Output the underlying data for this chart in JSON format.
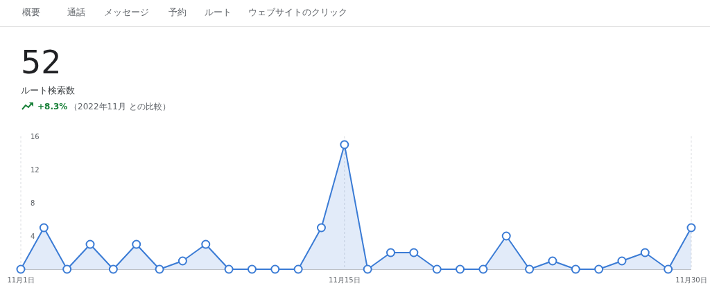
{
  "chart_data": {
    "type": "area",
    "title": "52",
    "subtitle": "ルート検索数",
    "annotations": [
      "概要",
      "通話",
      "メッセージ",
      "予約",
      "ルート",
      "ウェブサイトのクリック",
      "+8.3%",
      "（2022年11月 との比較）"
    ],
    "categories": [
      "11月1日",
      null,
      null,
      null,
      null,
      null,
      null,
      null,
      null,
      null,
      null,
      null,
      null,
      null,
      "11月15日",
      null,
      null,
      null,
      null,
      null,
      null,
      null,
      null,
      null,
      null,
      null,
      null,
      null,
      null,
      "11月30日"
    ],
    "series": [
      {
        "color": "#3a7bd5",
        "values": [
          0,
          5,
          0,
          3,
          0,
          3,
          0,
          1,
          3,
          0,
          0,
          0,
          0,
          5,
          15,
          0,
          2,
          2,
          0,
          0,
          0,
          4,
          0,
          1,
          0,
          0,
          1,
          2,
          0,
          5
        ]
      }
    ],
    "ylim": [
      0,
      16
    ],
    "yticks": [
      4,
      8,
      12,
      16
    ],
    "grid": "x",
    "marker": "circle"
  }
}
